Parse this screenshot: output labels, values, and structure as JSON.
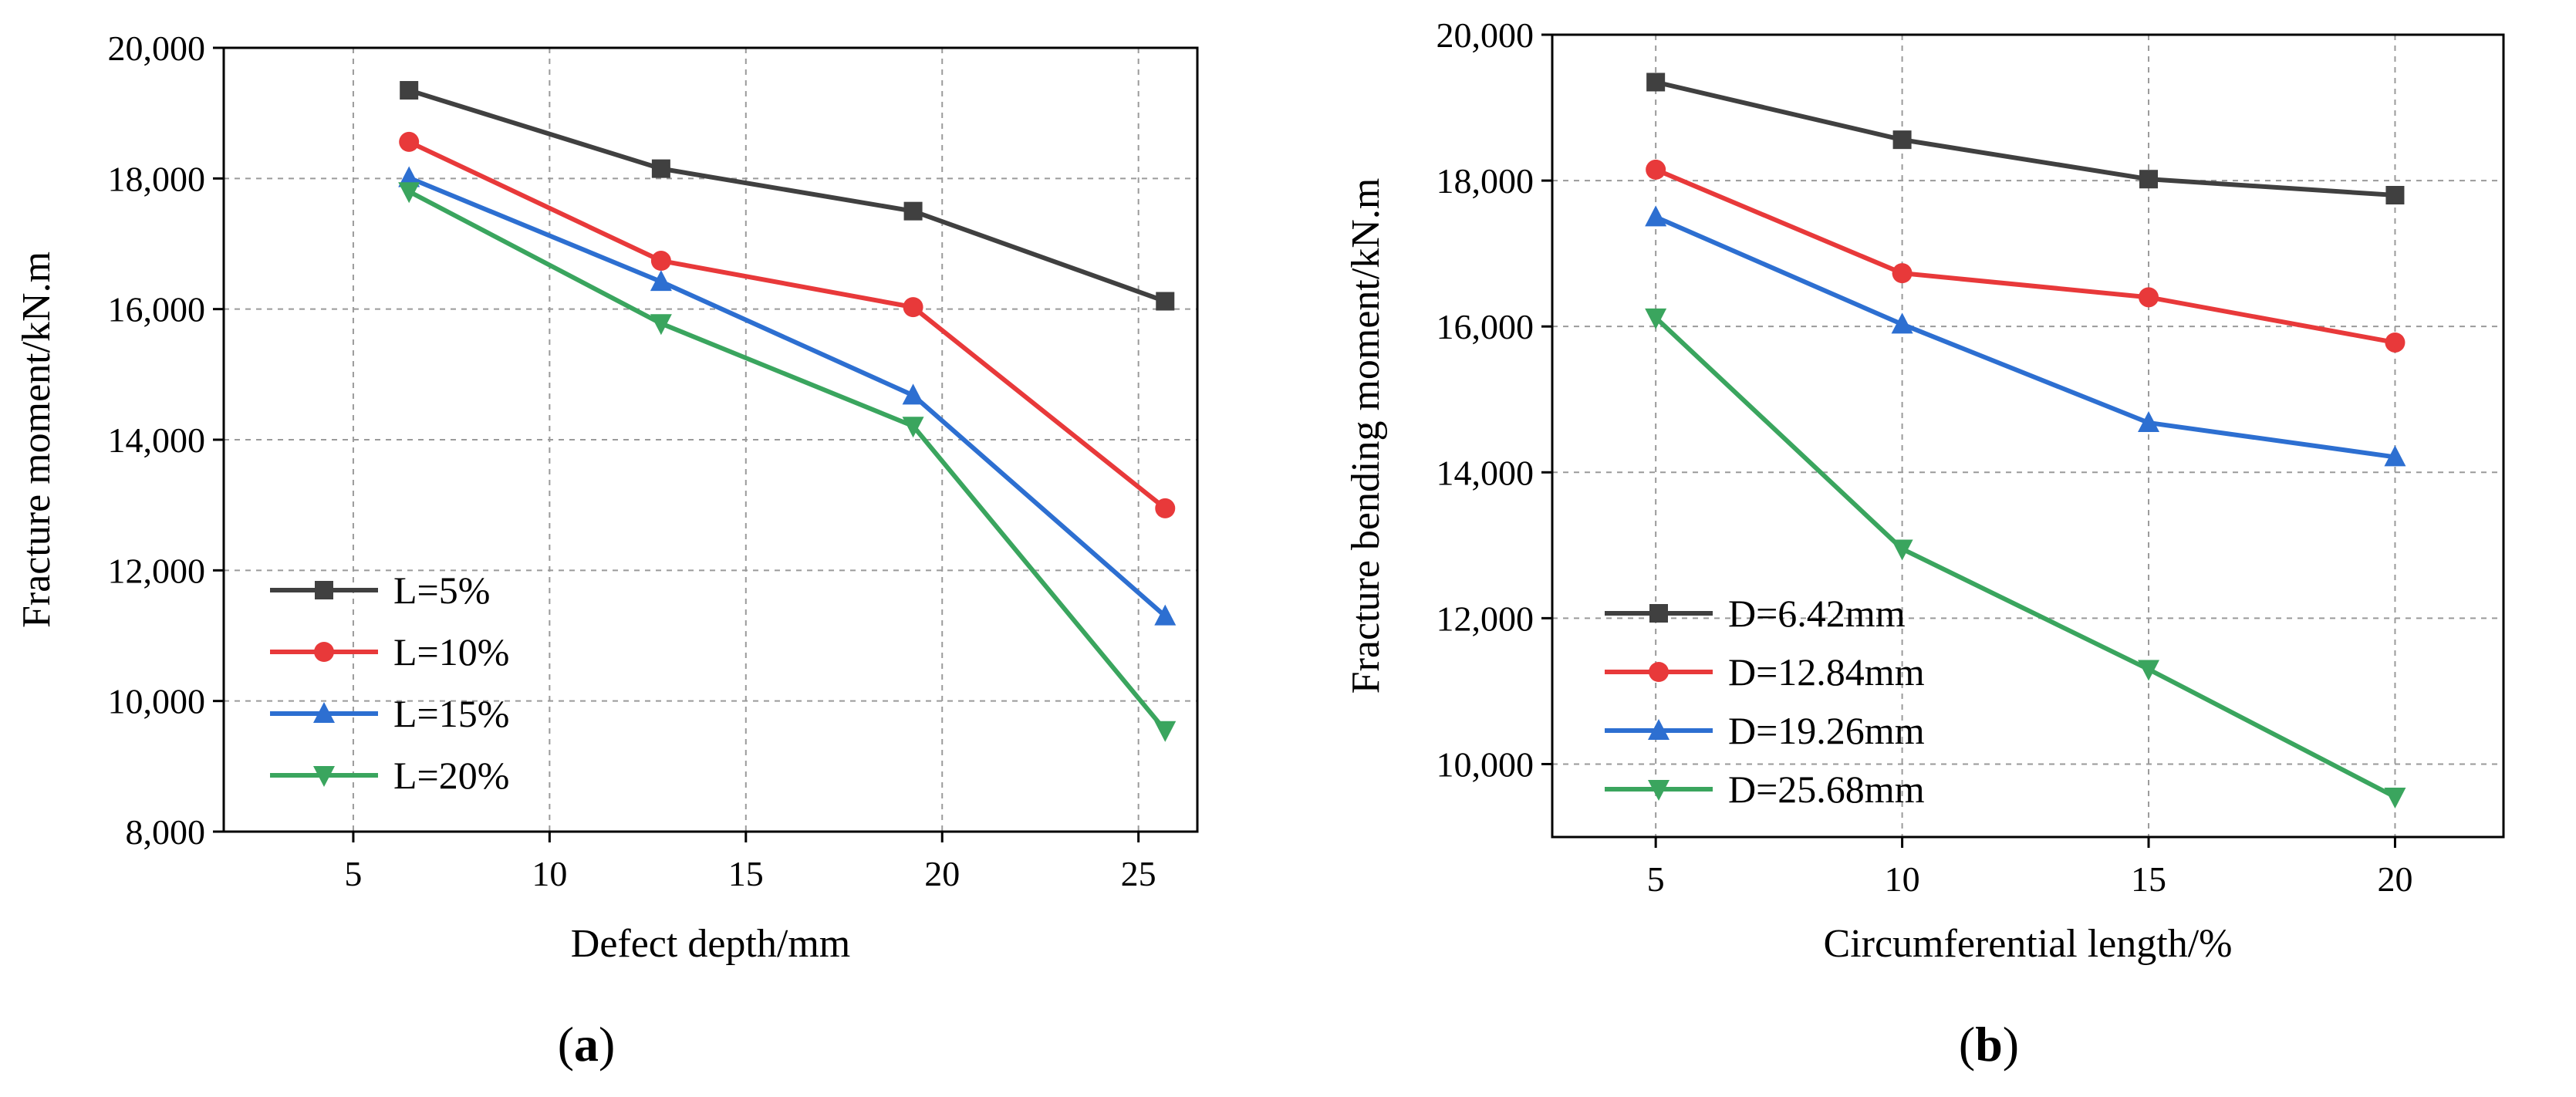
{
  "chart_data": [
    {
      "type": "line",
      "panel_label": "a",
      "title": "",
      "xlabel": "Defect depth/mm",
      "ylabel": "Fracture moment/kN.m",
      "xlim": [
        1.7,
        26.5
      ],
      "ylim": [
        8000,
        20000
      ],
      "x_ticks": [
        5,
        10,
        15,
        20,
        25
      ],
      "x_tick_labels": [
        "5",
        "10",
        "15",
        "20",
        "25"
      ],
      "y_ticks": [
        8000,
        10000,
        12000,
        14000,
        16000,
        18000,
        20000
      ],
      "y_tick_labels": [
        "8,000",
        "10,000",
        "12,000",
        "14,000",
        "16,000",
        "18,000",
        "20,000"
      ],
      "grid": true,
      "legend_position": "lower-left",
      "x": [
        6.42,
        12.84,
        19.26,
        25.68
      ],
      "series": [
        {
          "name": "L=5%",
          "values": [
            19350,
            18150,
            17500,
            16120
          ],
          "color": "#404040",
          "marker": "square"
        },
        {
          "name": "L=10%",
          "values": [
            18560,
            16740,
            16030,
            12950
          ],
          "color": "#e8393a",
          "marker": "circle"
        },
        {
          "name": "L=15%",
          "values": [
            18010,
            16420,
            14680,
            11300
          ],
          "color": "#2d6fd1",
          "marker": "triangle-up"
        },
        {
          "name": "L=20%",
          "values": [
            17800,
            15780,
            14210,
            9550
          ],
          "color": "#3aa55e",
          "marker": "triangle-down"
        }
      ]
    },
    {
      "type": "line",
      "panel_label": "b",
      "title": "",
      "xlabel": "Circumferential length/%",
      "ylabel": "Fracture bending moment/kN.m",
      "xlim": [
        2.9,
        22.2
      ],
      "ylim": [
        9000,
        20000
      ],
      "x_ticks": [
        5,
        10,
        15,
        20
      ],
      "x_tick_labels": [
        "5",
        "10",
        "15",
        "20"
      ],
      "y_ticks": [
        10000,
        12000,
        14000,
        16000,
        18000,
        20000
      ],
      "y_tick_labels": [
        "10,000",
        "12,000",
        "14,000",
        "16,000",
        "18,000",
        "20,000"
      ],
      "grid": true,
      "legend_position": "lower-left",
      "x": [
        5,
        10,
        15,
        20
      ],
      "series": [
        {
          "name": "D=6.42mm",
          "values": [
            19350,
            18560,
            18020,
            17800
          ],
          "color": "#404040",
          "marker": "square"
        },
        {
          "name": "D=12.84mm",
          "values": [
            18150,
            16730,
            16400,
            15780
          ],
          "color": "#e8393a",
          "marker": "circle"
        },
        {
          "name": "D=19.26mm",
          "values": [
            17500,
            16030,
            14680,
            14210
          ],
          "color": "#2d6fd1",
          "marker": "triangle-up"
        },
        {
          "name": "D=25.68mm",
          "values": [
            16120,
            12950,
            11300,
            9550
          ],
          "color": "#3aa55e",
          "marker": "triangle-down"
        }
      ]
    }
  ]
}
